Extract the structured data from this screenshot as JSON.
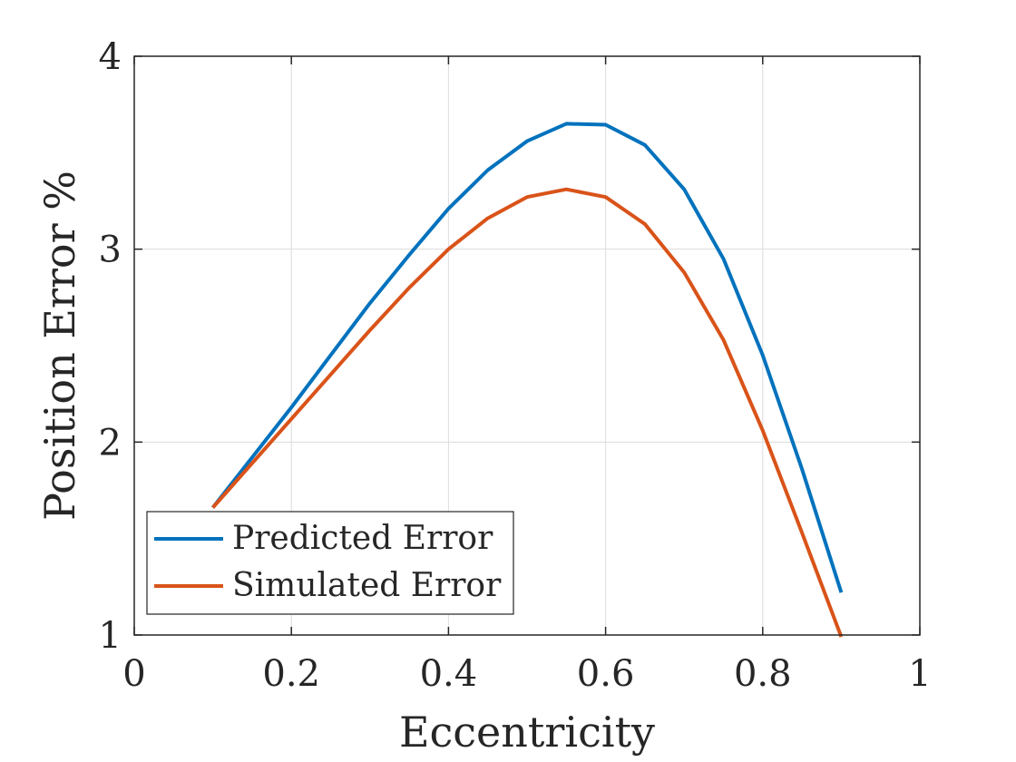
{
  "chart_data": {
    "type": "line",
    "xlabel": "Eccentricity",
    "ylabel": "Position Error %",
    "xlim": [
      0,
      1
    ],
    "ylim": [
      1,
      4
    ],
    "xticks": [
      0,
      0.2,
      0.4,
      0.6,
      0.8,
      1
    ],
    "xtick_labels": [
      "0",
      "0.2",
      "0.4",
      "0.6",
      "0.8",
      "1"
    ],
    "yticks": [
      1,
      2,
      3,
      4
    ],
    "ytick_labels": [
      "1",
      "2",
      "3",
      "4"
    ],
    "grid": true,
    "legend_position": "bottom-left",
    "x": [
      0.1,
      0.15,
      0.2,
      0.25,
      0.3,
      0.35,
      0.4,
      0.45,
      0.5,
      0.55,
      0.6,
      0.65,
      0.7,
      0.75,
      0.8,
      0.85,
      0.9
    ],
    "series": [
      {
        "name": "Predicted Error",
        "color": "#0072BD",
        "values": [
          1.66,
          1.92,
          2.18,
          2.45,
          2.72,
          2.97,
          3.21,
          3.41,
          3.56,
          3.65,
          3.645,
          3.54,
          3.31,
          2.95,
          2.45,
          1.86,
          1.22
        ]
      },
      {
        "name": "Simulated Error",
        "color": "#D95319",
        "values": [
          1.66,
          1.89,
          2.12,
          2.35,
          2.58,
          2.8,
          3.0,
          3.16,
          3.27,
          3.31,
          3.27,
          3.13,
          2.88,
          2.53,
          2.06,
          1.53,
          0.99
        ]
      }
    ]
  }
}
